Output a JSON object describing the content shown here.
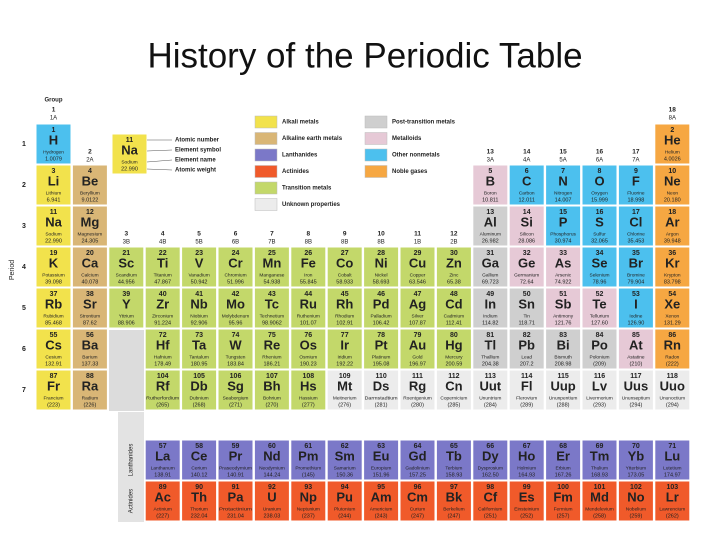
{
  "title": "History of the Periodic Table",
  "group_label": "Group",
  "period_label": "Period",
  "groups": [
    [
      "1",
      "1A"
    ],
    [
      "2",
      "2A"
    ],
    [
      "3",
      "3B"
    ],
    [
      "4",
      "4B"
    ],
    [
      "5",
      "5B"
    ],
    [
      "6",
      "6B"
    ],
    [
      "7",
      "7B"
    ],
    [
      "8",
      "8B"
    ],
    [
      "9",
      "8B"
    ],
    [
      "10",
      "8B"
    ],
    [
      "11",
      "1B"
    ],
    [
      "12",
      "2B"
    ],
    [
      "13",
      "3A"
    ],
    [
      "14",
      "4A"
    ],
    [
      "15",
      "5A"
    ],
    [
      "16",
      "6A"
    ],
    [
      "17",
      "7A"
    ],
    [
      "18",
      "8A"
    ]
  ],
  "periods": [
    "1",
    "2",
    "3",
    "4",
    "5",
    "6",
    "7"
  ],
  "series_labels": [
    "Lanthanides",
    "Actinides"
  ],
  "key": {
    "number": "11",
    "symbol": "Na",
    "name": "Sodium",
    "weight": "22.990",
    "labels": [
      "Atomic number",
      "Element symbol",
      "Element name",
      "Atomic weight"
    ]
  },
  "categories": [
    {
      "label": "Alkali metals",
      "color": "#f2e24c"
    },
    {
      "label": "Alkaline earth metals",
      "color": "#d9b676"
    },
    {
      "label": "Lanthanides",
      "color": "#7b78c8"
    },
    {
      "label": "Actinides",
      "color": "#f05a2a"
    },
    {
      "label": "Transition metals",
      "color": "#c3d86a"
    },
    {
      "label": "Unknown properties",
      "color": "#ececec"
    },
    {
      "label": "Post-transition metals",
      "color": "#cfcfcf"
    },
    {
      "label": "Metalloids",
      "color": "#e6c9d6"
    },
    {
      "label": "Other nonmetals",
      "color": "#4cc0ee"
    },
    {
      "label": "Noble gases",
      "color": "#f6a742"
    }
  ],
  "elements": [
    [
      1,
      "H",
      "Hydrogen",
      "1.0079",
      8
    ],
    [
      2,
      "He",
      "Helium",
      "4.0026",
      9
    ],
    [
      3,
      "Li",
      "Lithium",
      "6.941",
      0
    ],
    [
      4,
      "Be",
      "Beryllium",
      "9.0122",
      1
    ],
    [
      5,
      "B",
      "Boron",
      "10.811",
      7
    ],
    [
      6,
      "C",
      "Carbon",
      "12.011",
      8
    ],
    [
      7,
      "N",
      "Nitrogen",
      "14.007",
      8
    ],
    [
      8,
      "O",
      "Oxygen",
      "15.999",
      8
    ],
    [
      9,
      "F",
      "Fluorine",
      "18.998",
      8
    ],
    [
      10,
      "Ne",
      "Neon",
      "20.180",
      9
    ],
    [
      11,
      "Na",
      "Sodium",
      "22.990",
      0
    ],
    [
      12,
      "Mg",
      "Magnesium",
      "24.305",
      1
    ],
    [
      13,
      "Al",
      "Aluminum",
      "26.982",
      6
    ],
    [
      14,
      "Si",
      "Silicon",
      "28.086",
      7
    ],
    [
      15,
      "P",
      "Phosphorus",
      "30.974",
      8
    ],
    [
      16,
      "S",
      "Sulfur",
      "32.065",
      8
    ],
    [
      17,
      "Cl",
      "Chlorine",
      "35.453",
      8
    ],
    [
      18,
      "Ar",
      "Argon",
      "39.948",
      9
    ],
    [
      19,
      "K",
      "Potassium",
      "39.098",
      0
    ],
    [
      20,
      "Ca",
      "Calcium",
      "40.078",
      1
    ],
    [
      21,
      "Sc",
      "Scandium",
      "44.956",
      4
    ],
    [
      22,
      "Ti",
      "Titanium",
      "47.867",
      4
    ],
    [
      23,
      "V",
      "Vanadium",
      "50.942",
      4
    ],
    [
      24,
      "Cr",
      "Chromium",
      "51.996",
      4
    ],
    [
      25,
      "Mn",
      "Manganese",
      "54.938",
      4
    ],
    [
      26,
      "Fe",
      "Iron",
      "55.845",
      4
    ],
    [
      27,
      "Co",
      "Cobalt",
      "58.933",
      4
    ],
    [
      28,
      "Ni",
      "Nickel",
      "58.693",
      4
    ],
    [
      29,
      "Cu",
      "Copper",
      "63.546",
      4
    ],
    [
      30,
      "Zn",
      "Zinc",
      "65.38",
      4
    ],
    [
      31,
      "Ga",
      "Gallium",
      "69.723",
      6
    ],
    [
      32,
      "Ge",
      "Germanium",
      "72.64",
      7
    ],
    [
      33,
      "As",
      "Arsenic",
      "74.922",
      7
    ],
    [
      34,
      "Se",
      "Selenium",
      "78.96",
      8
    ],
    [
      35,
      "Br",
      "Bromine",
      "79.904",
      8
    ],
    [
      36,
      "Kr",
      "Krypton",
      "83.798",
      9
    ],
    [
      37,
      "Rb",
      "Rubidium",
      "85.468",
      0
    ],
    [
      38,
      "Sr",
      "Strontium",
      "87.62",
      1
    ],
    [
      39,
      "Y",
      "Yttrium",
      "88.906",
      4
    ],
    [
      40,
      "Zr",
      "Zirconium",
      "91.224",
      4
    ],
    [
      41,
      "Nb",
      "Niobium",
      "92.906",
      4
    ],
    [
      42,
      "Mo",
      "Molybdenum",
      "95.96",
      4
    ],
    [
      43,
      "Tc",
      "Technetium",
      "98.9062",
      4
    ],
    [
      44,
      "Ru",
      "Ruthenium",
      "101.07",
      4
    ],
    [
      45,
      "Rh",
      "Rhodium",
      "102.91",
      4
    ],
    [
      46,
      "Pd",
      "Palladium",
      "106.42",
      4
    ],
    [
      47,
      "Ag",
      "Silver",
      "107.87",
      4
    ],
    [
      48,
      "Cd",
      "Cadmium",
      "112.41",
      4
    ],
    [
      49,
      "In",
      "Indium",
      "114.82",
      6
    ],
    [
      50,
      "Sn",
      "Tin",
      "118.71",
      6
    ],
    [
      51,
      "Sb",
      "Antimony",
      "121.76",
      7
    ],
    [
      52,
      "Te",
      "Tellurium",
      "127.60",
      7
    ],
    [
      53,
      "I",
      "Iodine",
      "126.90",
      8
    ],
    [
      54,
      "Xe",
      "Xenon",
      "131.29",
      9
    ],
    [
      55,
      "Cs",
      "Cesium",
      "132.91",
      0
    ],
    [
      56,
      "Ba",
      "Barium",
      "137.33",
      1
    ],
    [
      57,
      "La",
      "Lanthanum",
      "138.91",
      2
    ],
    [
      58,
      "Ce",
      "Cerium",
      "140.12",
      2
    ],
    [
      59,
      "Pr",
      "Praseodymium",
      "140.91",
      2
    ],
    [
      60,
      "Nd",
      "Neodymium",
      "144.24",
      2
    ],
    [
      61,
      "Pm",
      "Promethium",
      "(145)",
      2
    ],
    [
      62,
      "Sm",
      "Samarium",
      "150.36",
      2
    ],
    [
      63,
      "Eu",
      "Europium",
      "151.96",
      2
    ],
    [
      64,
      "Gd",
      "Gadolinium",
      "157.25",
      2
    ],
    [
      65,
      "Tb",
      "Terbium",
      "158.93",
      2
    ],
    [
      66,
      "Dy",
      "Dysprosium",
      "162.50",
      2
    ],
    [
      67,
      "Ho",
      "Holmium",
      "164.93",
      2
    ],
    [
      68,
      "Er",
      "Erbium",
      "167.26",
      2
    ],
    [
      69,
      "Tm",
      "Thulium",
      "168.93",
      2
    ],
    [
      70,
      "Yb",
      "Ytterbium",
      "173.05",
      2
    ],
    [
      71,
      "Lu",
      "Lutetium",
      "174.97",
      2
    ],
    [
      72,
      "Hf",
      "Hafnium",
      "178.49",
      4
    ],
    [
      73,
      "Ta",
      "Tantalum",
      "180.95",
      4
    ],
    [
      74,
      "W",
      "Tungsten",
      "183.84",
      4
    ],
    [
      75,
      "Re",
      "Rhenium",
      "186.21",
      4
    ],
    [
      76,
      "Os",
      "Osmium",
      "190.23",
      4
    ],
    [
      77,
      "Ir",
      "Iridium",
      "192.22",
      4
    ],
    [
      78,
      "Pt",
      "Platinum",
      "195.08",
      4
    ],
    [
      79,
      "Au",
      "Gold",
      "196.97",
      4
    ],
    [
      80,
      "Hg",
      "Mercury",
      "200.59",
      4
    ],
    [
      81,
      "Tl",
      "Thallium",
      "204.38",
      6
    ],
    [
      82,
      "Pb",
      "Lead",
      "207.2",
      6
    ],
    [
      83,
      "Bi",
      "Bismuth",
      "208.98",
      6
    ],
    [
      84,
      "Po",
      "Polonium",
      "(209)",
      6
    ],
    [
      85,
      "At",
      "Astatine",
      "(210)",
      7
    ],
    [
      86,
      "Rn",
      "Radon",
      "(222)",
      9
    ],
    [
      87,
      "Fr",
      "Francium",
      "(223)",
      0
    ],
    [
      88,
      "Ra",
      "Radium",
      "(226)",
      1
    ],
    [
      89,
      "Ac",
      "Actinium",
      "(227)",
      3
    ],
    [
      90,
      "Th",
      "Thorium",
      "232.04",
      3
    ],
    [
      91,
      "Pa",
      "Protactinium",
      "231.04",
      3
    ],
    [
      92,
      "U",
      "Uranium",
      "238.03",
      3
    ],
    [
      93,
      "Np",
      "Neptunium",
      "(237)",
      3
    ],
    [
      94,
      "Pu",
      "Plutonium",
      "(244)",
      3
    ],
    [
      95,
      "Am",
      "Americium",
      "(243)",
      3
    ],
    [
      96,
      "Cm",
      "Curium",
      "(247)",
      3
    ],
    [
      97,
      "Bk",
      "Berkelium",
      "(247)",
      3
    ],
    [
      98,
      "Cf",
      "Californium",
      "(251)",
      3
    ],
    [
      99,
      "Es",
      "Einsteinium",
      "(252)",
      3
    ],
    [
      100,
      "Fm",
      "Fermium",
      "(257)",
      3
    ],
    [
      101,
      "Md",
      "Mendelevium",
      "(258)",
      3
    ],
    [
      102,
      "No",
      "Nobelium",
      "(259)",
      3
    ],
    [
      103,
      "Lr",
      "Lawrencium",
      "(262)",
      3
    ],
    [
      104,
      "Rf",
      "Rutherfordium",
      "(265)",
      4
    ],
    [
      105,
      "Db",
      "Dubnium",
      "(268)",
      4
    ],
    [
      106,
      "Sg",
      "Seaborgium",
      "(271)",
      4
    ],
    [
      107,
      "Bh",
      "Bohrium",
      "(270)",
      4
    ],
    [
      108,
      "Hs",
      "Hassium",
      "(277)",
      4
    ],
    [
      109,
      "Mt",
      "Meitnerium",
      "(276)",
      5
    ],
    [
      110,
      "Ds",
      "Darmstadtium",
      "(281)",
      5
    ],
    [
      111,
      "Rg",
      "Roentgenium",
      "(280)",
      5
    ],
    [
      112,
      "Cn",
      "Copernicium",
      "(285)",
      5
    ],
    [
      113,
      "Uut",
      "Ununtrium",
      "(284)",
      5
    ],
    [
      114,
      "Fl",
      "Flerovium",
      "(289)",
      5
    ],
    [
      115,
      "Uup",
      "Ununpentium",
      "(288)",
      5
    ],
    [
      116,
      "Lv",
      "Livermorium",
      "(293)",
      5
    ],
    [
      117,
      "Uus",
      "Ununseptium",
      "(294)",
      5
    ],
    [
      118,
      "Uuo",
      "Ununoctium",
      "(294)",
      5
    ]
  ]
}
